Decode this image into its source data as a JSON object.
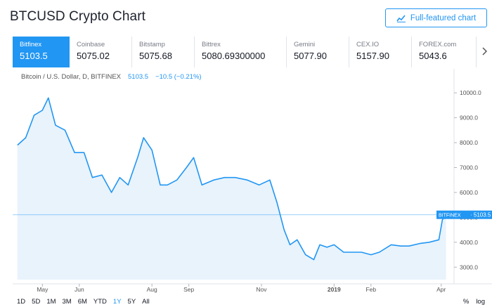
{
  "header": {
    "title": "BTCUSD Crypto Chart",
    "full_chart_label": "Full-featured chart",
    "full_chart_icon": "chart-icon"
  },
  "exchanges": [
    {
      "name": "Bitfinex",
      "price": "5103.5",
      "active": true
    },
    {
      "name": "Coinbase",
      "price": "5075.02",
      "active": false
    },
    {
      "name": "Bitstamp",
      "price": "5075.68",
      "active": false
    },
    {
      "name": "Bittrex",
      "price": "5080.69300000",
      "active": false
    },
    {
      "name": "Gemini",
      "price": "5077.90",
      "active": false
    },
    {
      "name": "CEX.IO",
      "price": "5157.90",
      "active": false
    },
    {
      "name": "FOREX.com",
      "price": "5043.6",
      "active": false
    }
  ],
  "tabs_next_icon": "chevron-right-icon",
  "legend": {
    "symbol": "Bitcoin / U.S. Dollar, D, BITFINEX",
    "last": "5103.5",
    "change": "−10.5 (−0.21%)"
  },
  "chart_data": {
    "type": "area",
    "x": [
      "2018-04-10",
      "2018-04-17",
      "2018-04-24",
      "2018-05-01",
      "2018-05-06",
      "2018-05-12",
      "2018-05-20",
      "2018-05-28",
      "2018-06-05",
      "2018-06-12",
      "2018-06-20",
      "2018-06-28",
      "2018-07-05",
      "2018-07-12",
      "2018-07-20",
      "2018-07-25",
      "2018-08-01",
      "2018-08-08",
      "2018-08-14",
      "2018-08-22",
      "2018-08-30",
      "2018-09-05",
      "2018-09-12",
      "2018-09-22",
      "2018-10-01",
      "2018-10-10",
      "2018-10-20",
      "2018-10-30",
      "2018-11-08",
      "2018-11-14",
      "2018-11-20",
      "2018-11-25",
      "2018-12-01",
      "2018-12-08",
      "2018-12-15",
      "2018-12-20",
      "2018-12-26",
      "2019-01-01",
      "2019-01-09",
      "2019-01-16",
      "2019-01-24",
      "2019-02-01",
      "2019-02-08",
      "2019-02-18",
      "2019-02-26",
      "2019-03-05",
      "2019-03-14",
      "2019-03-22",
      "2019-03-30",
      "2019-04-02",
      "2019-04-05"
    ],
    "y": [
      7900,
      8200,
      9100,
      9300,
      9800,
      8700,
      8500,
      7600,
      7600,
      6600,
      6700,
      6000,
      6600,
      6300,
      7400,
      8200,
      7700,
      6300,
      6300,
      6500,
      7000,
      7400,
      6300,
      6500,
      6600,
      6600,
      6500,
      6300,
      6500,
      5600,
      4500,
      3900,
      4100,
      3500,
      3300,
      3900,
      3800,
      3900,
      3600,
      3600,
      3600,
      3500,
      3600,
      3900,
      3850,
      3850,
      3950,
      4000,
      4100,
      4900,
      5103.5
    ],
    "x_ticks": [
      "May",
      "Jun",
      "Aug",
      "Sep",
      "Nov",
      "2019",
      "Feb",
      "Apr"
    ],
    "y_ticks": [
      "10000.0",
      "9000.0",
      "8000.0",
      "7000.0",
      "6000.0",
      "5000.0",
      "4000.0",
      "3000.0"
    ],
    "ylim": [
      2500,
      10400
    ],
    "last_label_source": "BITFINEX",
    "last_label_value": "5103.5",
    "colors": {
      "line": "#2196f3",
      "fill": "#e8f3fc",
      "last": "#2196f3"
    }
  },
  "ranges": [
    {
      "label": "1D",
      "selected": false
    },
    {
      "label": "5D",
      "selected": false
    },
    {
      "label": "1M",
      "selected": false
    },
    {
      "label": "3M",
      "selected": false
    },
    {
      "label": "6M",
      "selected": false
    },
    {
      "label": "YTD",
      "selected": false
    },
    {
      "label": "1Y",
      "selected": true
    },
    {
      "label": "5Y",
      "selected": false
    },
    {
      "label": "All",
      "selected": false
    }
  ],
  "scale_options": [
    "%",
    "log"
  ]
}
